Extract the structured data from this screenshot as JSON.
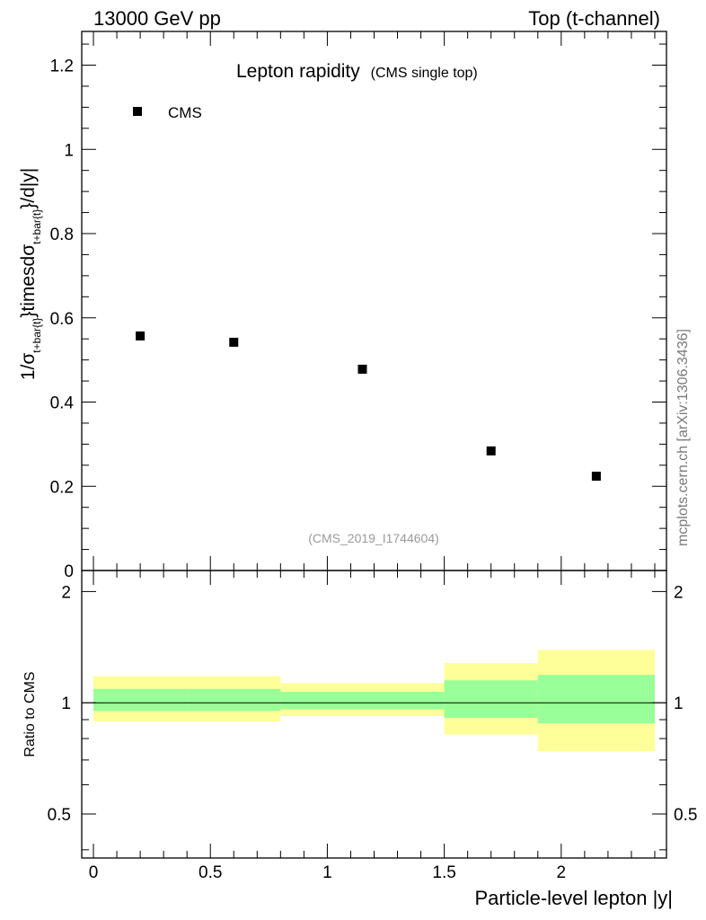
{
  "header": {
    "left": "13000 GeV pp",
    "right": "Top (t-channel)"
  },
  "title": {
    "main": "Lepton rapidity",
    "sub": "(CMS single top)"
  },
  "legend": {
    "label": "CMS",
    "position": "top-left"
  },
  "watermark": "(CMS_2019_I1744604)",
  "side_label": "mcplots.cern.ch [arXiv:1306.3436]",
  "chart_data": [
    {
      "type": "scatter",
      "panel": "main",
      "title": "Lepton rapidity (CMS single top)",
      "ylabel": "1/σ_{t+bar{t}}timesdσ_{t+bar{t}}/d|y|",
      "ylabel_parts": {
        "p1": "1/σ",
        "s1": "t+bar{t}",
        "p2": "}timesdσ",
        "s2": "t+bar{t}",
        "p3": "}/d|y|"
      },
      "xlim": [
        -0.05,
        2.45
      ],
      "ylim": [
        0,
        1.28
      ],
      "yticks": [
        0,
        0.2,
        0.4,
        0.6,
        0.8,
        1,
        1.2
      ],
      "ytick_labels": [
        "0",
        "0.2",
        "0.4",
        "0.6",
        "0.8",
        "1",
        "1.2"
      ],
      "series": [
        {
          "name": "CMS",
          "color": "#000000",
          "x": [
            0.2,
            0.6,
            1.15,
            1.7,
            2.15
          ],
          "y": [
            0.557,
            0.542,
            0.478,
            0.284,
            0.224
          ]
        }
      ]
    },
    {
      "type": "area",
      "panel": "ratio",
      "xlabel": "Particle-level lepton |y|",
      "ylabel": "Ratio to CMS",
      "xlim": [
        -0.05,
        2.45
      ],
      "ylim": [
        0.38,
        2.28
      ],
      "xticks": [
        0,
        0.5,
        1,
        1.5,
        2
      ],
      "xtick_labels": [
        "0",
        "0.5",
        "1",
        "1.5",
        "2"
      ],
      "yticks": [
        0.5,
        1,
        2
      ],
      "ytick_labels": [
        "0.5",
        "1",
        "2"
      ],
      "bin_edges": [
        0,
        0.4,
        0.8,
        1.5,
        1.9,
        2.4
      ],
      "bands": [
        {
          "name": "total uncertainty",
          "color": "#ffff99",
          "low": [
            0.89,
            0.89,
            0.92,
            0.82,
            0.74
          ],
          "high": [
            1.18,
            1.18,
            1.13,
            1.28,
            1.39
          ]
        },
        {
          "name": "statistical uncertainty",
          "color": "#99ff99",
          "low": [
            0.95,
            0.95,
            0.96,
            0.91,
            0.88
          ],
          "high": [
            1.09,
            1.09,
            1.07,
            1.15,
            1.19
          ]
        }
      ],
      "reference_line": 1
    }
  ]
}
